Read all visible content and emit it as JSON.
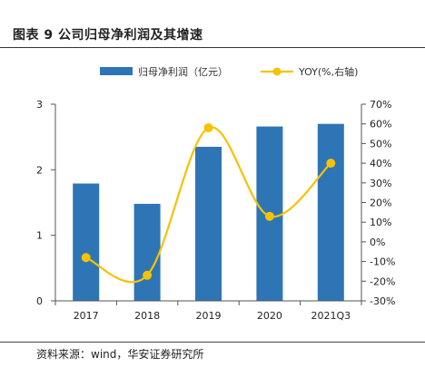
{
  "page_title": "图表 9  公司归母净利润及其增速",
  "source_note": "资料来源：wind，华安证券研究所",
  "colors": {
    "bar": "#2E75B6",
    "line": "#F7C200",
    "axis": "#555555"
  },
  "chart_data": {
    "type": "bar",
    "categories": [
      "2017",
      "2018",
      "2019",
      "2020",
      "2021Q3"
    ],
    "series": [
      {
        "name": "归母净利润（亿元）",
        "type": "bar",
        "axis": "left",
        "values": [
          1.79,
          1.48,
          2.35,
          2.66,
          2.7
        ]
      },
      {
        "name": "YOY(%,右轴)",
        "type": "line",
        "axis": "right",
        "values": [
          -8,
          -17,
          58,
          13,
          40
        ]
      }
    ],
    "y_left": {
      "min": 0,
      "max": 3,
      "ticks": [
        "0",
        "1",
        "2",
        "3"
      ]
    },
    "y_right": {
      "min": -30,
      "max": 70,
      "ticks": [
        "-30%",
        "-20%",
        "-10%",
        "0%",
        "10%",
        "20%",
        "30%",
        "40%",
        "50%",
        "60%",
        "70%"
      ]
    },
    "legend_position": "top-center",
    "grid": false
  }
}
